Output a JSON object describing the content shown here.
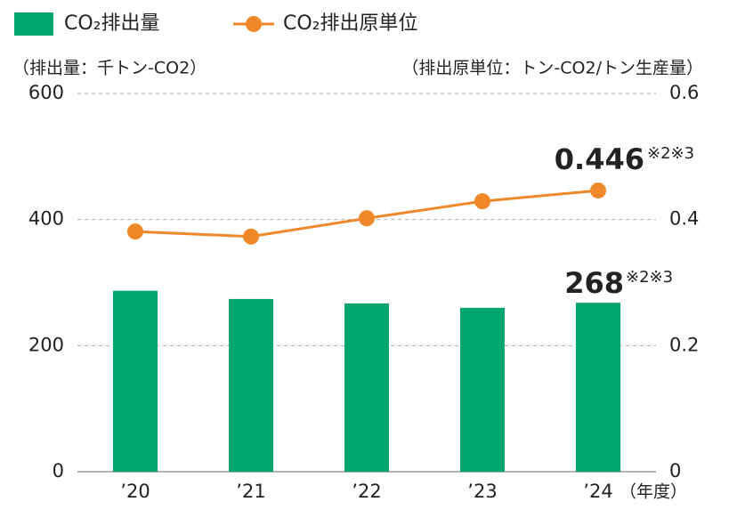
{
  "chart_data": {
    "type": "bar_line",
    "categories": [
      "’20",
      "’21",
      "’22",
      "’23",
      "’24"
    ],
    "series": [
      {
        "name": "CO₂排出量",
        "type": "bar",
        "color": "#00a66e",
        "axis": "y",
        "values": [
          287,
          274,
          267,
          260,
          268
        ],
        "label_index": 4,
        "note": "※2※3"
      },
      {
        "name": "CO₂排出原単位",
        "type": "line",
        "color": "#f0882a",
        "axis": "y2",
        "values": [
          0.381,
          0.373,
          0.402,
          0.429,
          0.446
        ],
        "label_index": 4,
        "note": "※2※3"
      }
    ],
    "y_label": "（排出量：千トン-CO2）",
    "y2_label": "（排出原単位：トン-CO2/トン生産量）",
    "x_label": "（年度）",
    "ylim": [
      0,
      600
    ],
    "yticks": [
      0,
      200,
      400,
      600
    ],
    "y2lim": [
      0,
      0.6
    ],
    "y2ticks": [
      0,
      0.2,
      0.4,
      0.6
    ],
    "grid": true
  }
}
